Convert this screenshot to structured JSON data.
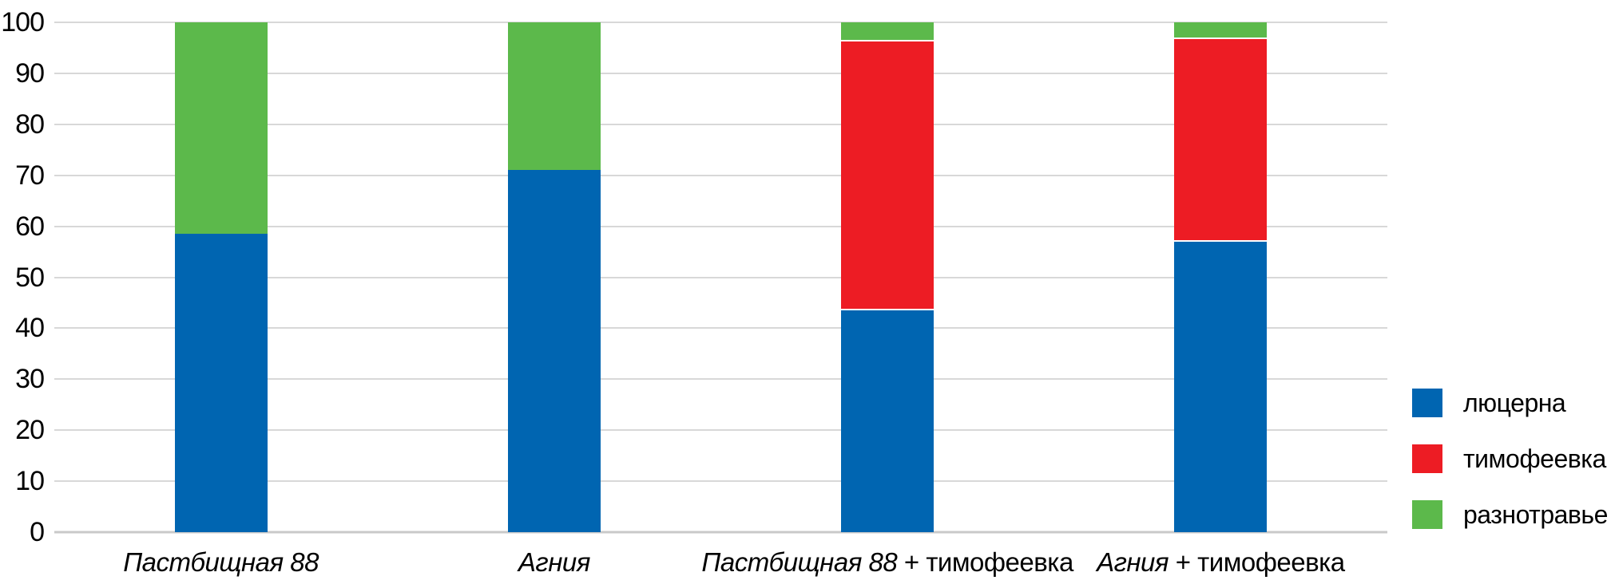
{
  "chart_data": {
    "type": "bar",
    "stacked": true,
    "title": "",
    "xlabel": "",
    "ylabel": "",
    "categories": [
      "Пастбищная 88",
      "Агния",
      "Пастбищная 88 + тимофеевка",
      "Агния + тимофеевка"
    ],
    "category_label_parts": [
      {
        "italic": "Пастбищная 88",
        "regular": ""
      },
      {
        "italic": "Агния",
        "regular": ""
      },
      {
        "italic": "Пастбищная 88",
        "regular": " + тимофеевка"
      },
      {
        "italic": "Агния",
        "regular": " + тимофеевка"
      }
    ],
    "series": [
      {
        "name": "люцерна",
        "color": "#0065B1",
        "values": [
          58.5,
          71,
          43.5,
          57
        ]
      },
      {
        "name": "тимофеевка",
        "color": "#ED1C24",
        "values": [
          0,
          0,
          53,
          40
        ]
      },
      {
        "name": "разнотравье",
        "color": "#5CB94B",
        "values": [
          41.5,
          29,
          3.5,
          3
        ]
      }
    ],
    "ylim": [
      0,
      100
    ],
    "yticks": [
      0,
      10,
      20,
      30,
      40,
      50,
      60,
      70,
      80,
      90,
      100
    ],
    "grid": true,
    "legend_position": "right",
    "colors": {
      "gridline": "#D8D8D8",
      "axis": "#C9C9C9",
      "text": "#000000",
      "background": "#FFFFFF"
    }
  }
}
